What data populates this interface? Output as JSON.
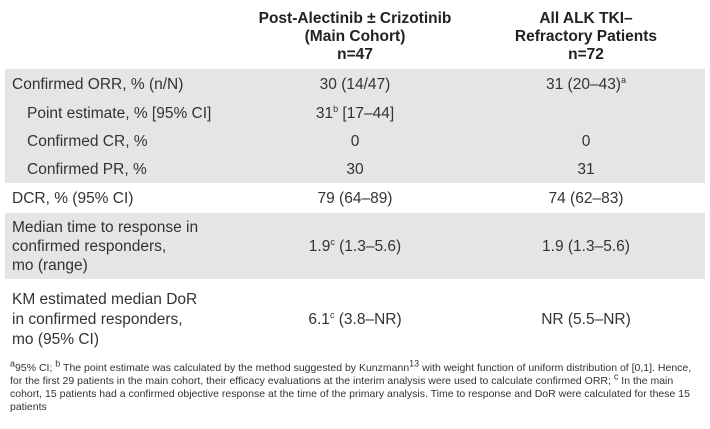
{
  "header": {
    "col_main": [
      "Post-Alectinib ± Crizotinib",
      "(Main Cohort)",
      "n=47"
    ],
    "col_all": [
      "All ALK TKI–",
      "Refractory Patients",
      "n=72"
    ]
  },
  "rows": {
    "orr": {
      "label": "Confirmed ORR, % (n/N)",
      "main": "30 (14/47)",
      "all": "31 (20–43)",
      "all_sup": "a"
    },
    "point": {
      "label": "Point estimate, % [95% CI]",
      "main_pre": "31",
      "main_sup": "b",
      "main_post": " [17–44]",
      "all": ""
    },
    "cr": {
      "label": "Confirmed CR, %",
      "main": "0",
      "all": "0"
    },
    "pr": {
      "label": "Confirmed PR, %",
      "main": "30",
      "all": "31"
    },
    "dcr": {
      "label": "DCR, % (95% CI)",
      "main": "79 (64–89)",
      "all": "74 (62–83)"
    },
    "ttr": {
      "label": [
        "Median time to response in",
        "confirmed responders,",
        "mo (range)"
      ],
      "main_pre": "1.9",
      "main_sup": "c",
      "main_post": " (1.3–5.6)",
      "all": "1.9 (1.3–5.6)"
    },
    "dor": {
      "label": [
        "KM estimated median DoR",
        "in confirmed responders,",
        "mo (95% CI)"
      ],
      "main_pre": "6.1",
      "main_sup": "c",
      "main_post": " (3.8–NR)",
      "all": "NR (5.5–NR)"
    }
  },
  "footnote": {
    "a_sup": "a",
    "a_text": "95% CI; ",
    "b_sup": "b",
    "b_text": " The point estimate was calculated by the method suggested by Kunzmann",
    "ref_sup": "13",
    "b_text2": " with weight function of uniform distribution of [0,1]. Hence, for the first 29 patients in the main cohort, their efficacy evaluations at the interim analysis were used to calculate confirmed ORR; ",
    "c_sup": "c",
    "c_text": " In the main cohort, 15 patients had a confirmed objective response at the time of the primary analysis. Time to response and DoR were calculated for these 15 patients"
  }
}
